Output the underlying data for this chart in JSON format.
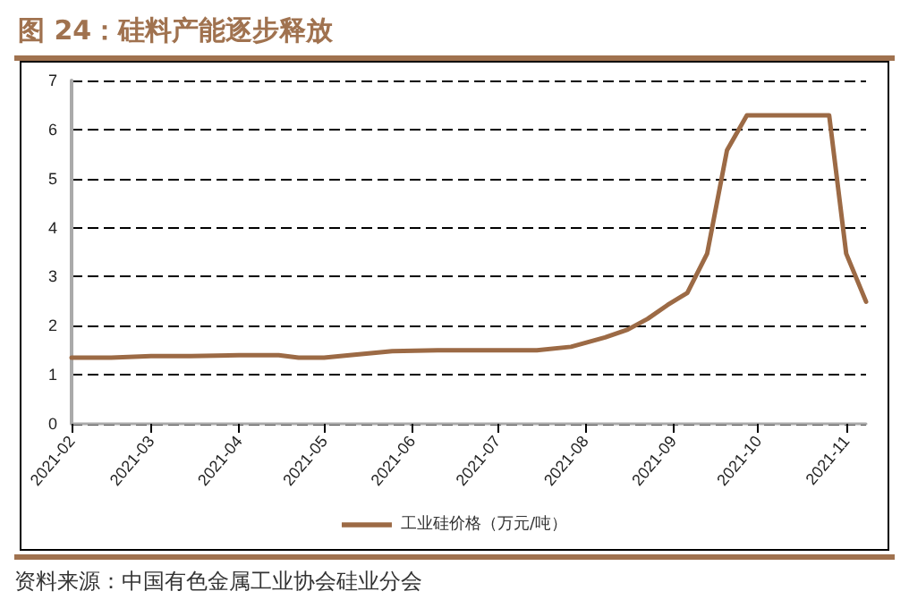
{
  "chart_data": {
    "type": "line",
    "title": "图 24：硅料产能逐步释放",
    "x": [
      "2021-02-01",
      "2021-02-15",
      "2021-03-01",
      "2021-03-15",
      "2021-04-01",
      "2021-04-15",
      "2021-04-22",
      "2021-05-01",
      "2021-05-10",
      "2021-05-25",
      "2021-06-10",
      "2021-07-01",
      "2021-07-15",
      "2021-07-27",
      "2021-08-08",
      "2021-08-16",
      "2021-08-23",
      "2021-08-30",
      "2021-09-06",
      "2021-09-13",
      "2021-09-20",
      "2021-09-27",
      "2021-10-26",
      "2021-11-01",
      "2021-11-08"
    ],
    "series": [
      {
        "name": "工业硅价格（万元/吨）",
        "color": "#9c6a45",
        "values": [
          1.35,
          1.35,
          1.38,
          1.38,
          1.4,
          1.4,
          1.35,
          1.35,
          1.4,
          1.48,
          1.5,
          1.5,
          1.5,
          1.57,
          1.76,
          1.92,
          2.14,
          2.42,
          2.67,
          3.47,
          5.58,
          6.29,
          6.29,
          3.47,
          2.49
        ]
      }
    ],
    "xlim": [
      "2021-02-01",
      "2021-11-08"
    ],
    "xticks": [
      "2021-02",
      "2021-03",
      "2021-04",
      "2021-05",
      "2021-06",
      "2021-07",
      "2021-08",
      "2021-09",
      "2021-10",
      "2021-11"
    ],
    "ylim": [
      0,
      7
    ],
    "yticks": [
      0,
      1,
      2,
      3,
      4,
      5,
      6,
      7
    ],
    "grid": "y",
    "legend": "bottom",
    "marker": "none",
    "line_style": "solid",
    "annotations": [
      "资料来源：中国有色金属工业协会硅业分会"
    ]
  }
}
